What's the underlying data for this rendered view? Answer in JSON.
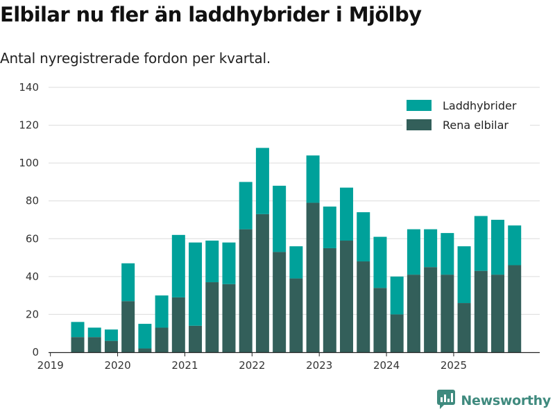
{
  "header": {
    "title": "Elbilar nu fler än laddhybrider i Mjölby",
    "subtitle": "Antal nyregistrerade fordon per kvartal."
  },
  "brand": {
    "name": "Newsworthy",
    "icon": "newsworthy-logo-icon",
    "color": "#3f8a7e"
  },
  "chart_data": {
    "type": "bar",
    "stacked": true,
    "title": "Elbilar nu fler än laddhybrider i Mjölby",
    "subtitle": "Antal nyregistrerade fordon per kvartal.",
    "xlabel": "",
    "ylabel": "",
    "ylim": [
      0,
      140
    ],
    "yticks": [
      0,
      20,
      40,
      60,
      80,
      100,
      120,
      140
    ],
    "xtick_labels": [
      "2019",
      "2020",
      "2021",
      "2022",
      "2023",
      "2024",
      "2025"
    ],
    "xtick_positions": [
      -1,
      3,
      7,
      11,
      15,
      19,
      23
    ],
    "grid": true,
    "legend_position": "top-right",
    "categories": [
      "2019 Q2",
      "2019 Q3",
      "2019 Q4",
      "2020 Q1",
      "2020 Q2",
      "2020 Q3",
      "2020 Q4",
      "2021 Q1",
      "2021 Q2",
      "2021 Q3",
      "2021 Q4",
      "2022 Q1",
      "2022 Q2",
      "2022 Q3",
      "2022 Q4",
      "2023 Q1",
      "2023 Q2",
      "2023 Q3",
      "2023 Q4",
      "2024 Q1",
      "2024 Q2",
      "2024 Q3",
      "2024 Q4",
      "2025 Q1",
      "2025 Q2",
      "2025 Q3",
      "2025 Q4"
    ],
    "series": [
      {
        "name": "Rena elbilar",
        "color": "#335f5a",
        "values": [
          8,
          8,
          6,
          27,
          2,
          13,
          29,
          14,
          37,
          36,
          65,
          73,
          53,
          39,
          79,
          55,
          59,
          48,
          34,
          20,
          41,
          45,
          41,
          26,
          43,
          41,
          46
        ]
      },
      {
        "name": "Laddhybrider",
        "color": "#00a19a",
        "values": [
          8,
          5,
          6,
          20,
          13,
          17,
          33,
          44,
          22,
          22,
          25,
          35,
          35,
          17,
          25,
          22,
          28,
          26,
          27,
          20,
          24,
          20,
          22,
          30,
          29,
          29,
          21
        ]
      }
    ],
    "legend": [
      {
        "name": "Laddhybrider",
        "color": "#00a19a"
      },
      {
        "name": "Rena elbilar",
        "color": "#335f5a"
      }
    ]
  }
}
